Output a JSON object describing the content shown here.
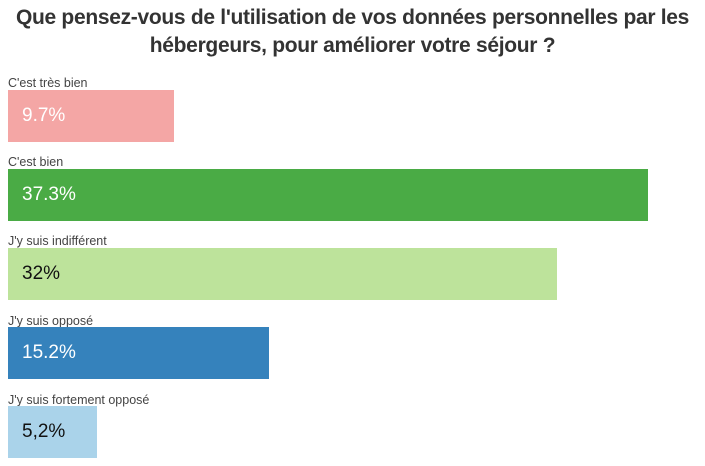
{
  "title_line1": "Que pensez-vous de l'utilisation de vos données personnelles par les",
  "title_line2": "hébergeurs, pour améliorer votre séjour ?",
  "chart_data": {
    "type": "bar",
    "orientation": "horizontal",
    "title": "Que pensez-vous de l'utilisation de vos données personnelles par les hébergeurs, pour améliorer votre séjour ?",
    "categories": [
      "C'est très bien",
      "C'est bien",
      "J'y suis indifférent",
      "J'y suis opposé",
      "J'y suis fortement opposé"
    ],
    "values": [
      9.7,
      37.3,
      32,
      15.2,
      5.2
    ],
    "value_labels": [
      "9.7%",
      "37.3%",
      "32%",
      "15.2%",
      "5,2%"
    ],
    "colors": [
      "#f4a6a5",
      "#4aab45",
      "#bde39b",
      "#3582bc",
      "#aad3ea"
    ],
    "label_colors": [
      "#ffffff",
      "#ffffff",
      "#111111",
      "#ffffff",
      "#111111"
    ],
    "xlim": [
      0,
      37.3
    ],
    "xlabel": "",
    "ylabel": ""
  }
}
